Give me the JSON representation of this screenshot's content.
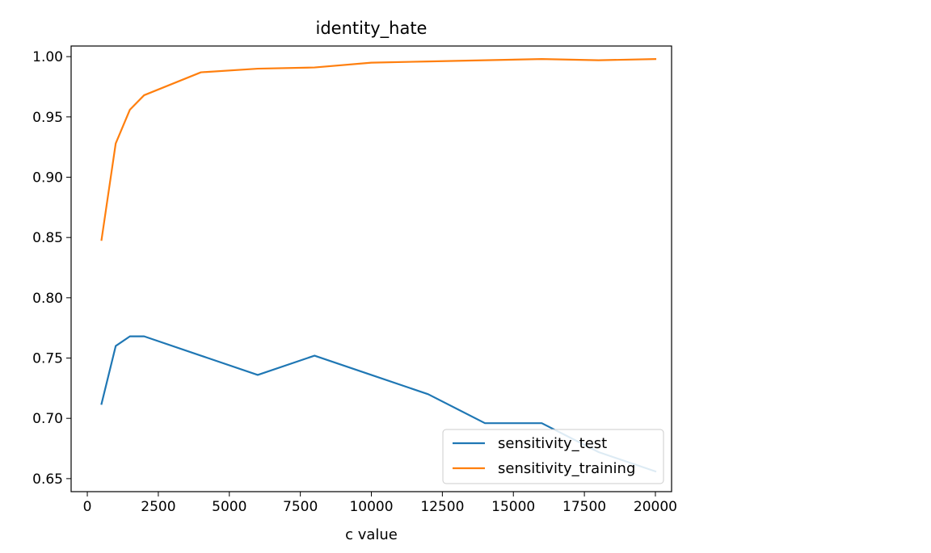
{
  "chart_data": {
    "type": "line",
    "title": "identity_hate",
    "xlabel": "c value",
    "ylabel": "",
    "xlim": [
      -570,
      20570
    ],
    "ylim": [
      0.6392,
      1.0088
    ],
    "xticks": [
      0,
      2500,
      5000,
      7500,
      10000,
      12500,
      15000,
      17500,
      20000
    ],
    "xtick_labels": [
      "0",
      "2500",
      "5000",
      "7500",
      "10000",
      "12500",
      "15000",
      "17500",
      "20000"
    ],
    "yticks": [
      0.65,
      0.7,
      0.75,
      0.8,
      0.85,
      0.9,
      0.95,
      1.0
    ],
    "ytick_labels": [
      "0.65",
      "0.70",
      "0.75",
      "0.80",
      "0.85",
      "0.90",
      "0.95",
      "1.00"
    ],
    "grid": false,
    "legend_position": "lower-right",
    "x": [
      500,
      1000,
      1500,
      2000,
      4000,
      6000,
      8000,
      10000,
      12000,
      14000,
      16000,
      18000,
      20000
    ],
    "series": [
      {
        "name": "sensitivity_test",
        "color": "#1f77b4",
        "values": [
          0.712,
          0.76,
          0.768,
          0.768,
          0.752,
          0.736,
          0.752,
          0.736,
          0.72,
          0.696,
          0.696,
          0.672,
          0.656
        ]
      },
      {
        "name": "sensitivity_training",
        "color": "#ff7f0e",
        "values": [
          0.848,
          0.928,
          0.956,
          0.968,
          0.987,
          0.99,
          0.991,
          0.995,
          0.996,
          0.997,
          0.998,
          0.997,
          0.998
        ]
      }
    ]
  }
}
